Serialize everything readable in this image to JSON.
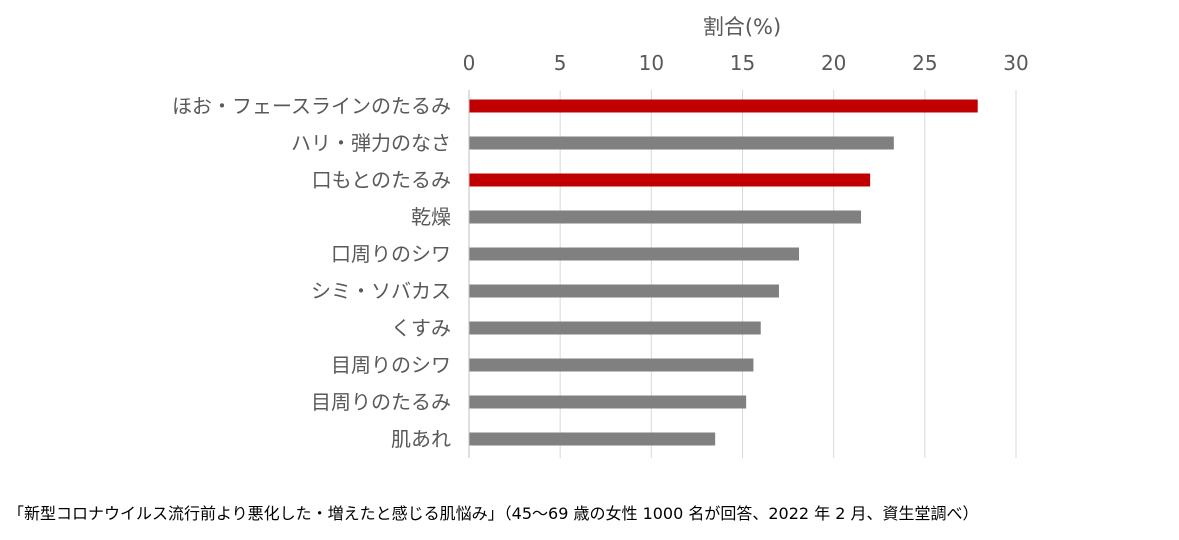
{
  "chart_data": {
    "type": "bar",
    "orientation": "horizontal",
    "xlabel": "割合(%)",
    "xlim": [
      0,
      30
    ],
    "xticks": [
      0,
      5,
      10,
      15,
      20,
      25,
      30
    ],
    "grid": "vertical",
    "categories": [
      "ほお・フェースラインのたるみ",
      "ハリ・弾力のなさ",
      "口もとのたるみ",
      "乾燥",
      "口周りのシワ",
      "シミ・ソバカス",
      "くすみ",
      "目周りのシワ",
      "目周りのたるみ",
      "肌あれ"
    ],
    "values": [
      27.9,
      23.3,
      22.0,
      21.5,
      18.1,
      17.0,
      16.0,
      15.6,
      15.2,
      13.5
    ],
    "highlight": [
      true,
      false,
      true,
      false,
      false,
      false,
      false,
      false,
      false,
      false
    ],
    "colors": {
      "highlight": "#c00000",
      "default": "#808080",
      "grid": "#d9d9d9",
      "axis": "#bfbfbf"
    }
  },
  "caption": "「新型コロナウイルス流行前より悪化した・増えたと感じる肌悩み」（45〜69 歳の女性 1000 名が回答、2022 年 2 月、資生堂調べ）"
}
